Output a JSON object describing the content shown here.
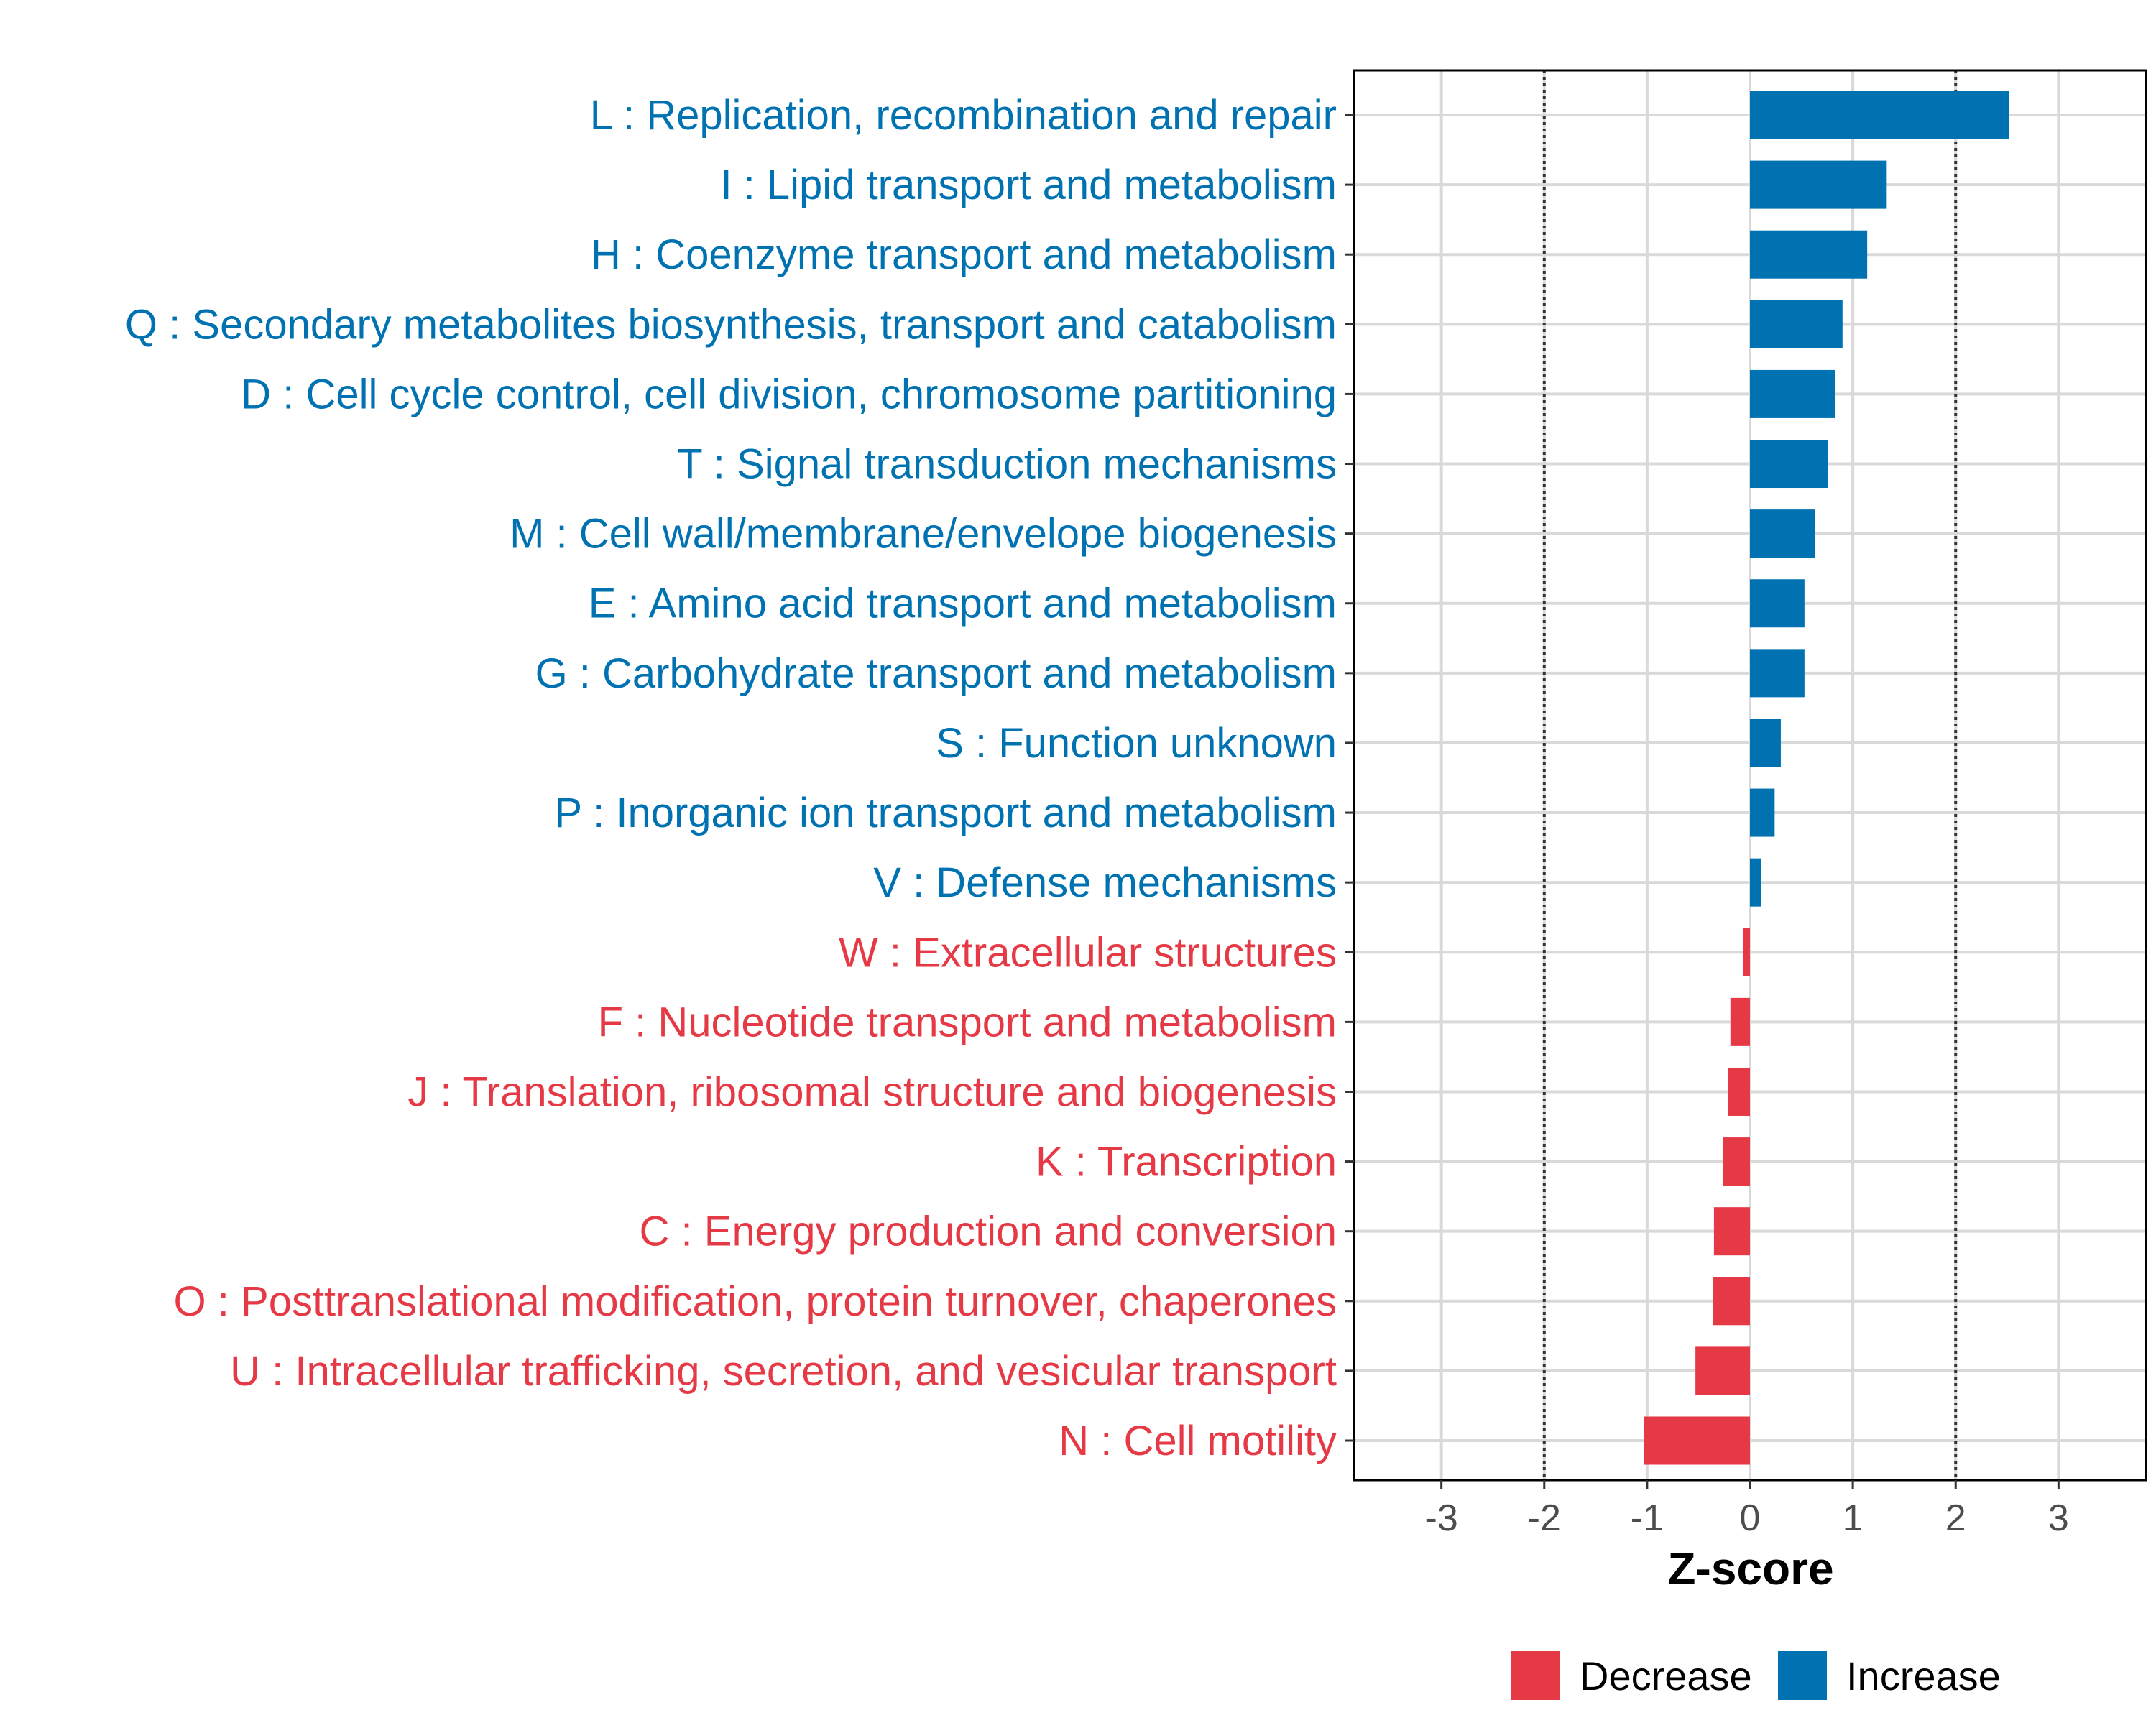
{
  "chart_data": {
    "type": "bar",
    "orientation": "horizontal",
    "xlabel": "Z-score",
    "ylabel": "",
    "xlim": [
      -3.85,
      3.85
    ],
    "xticks": [
      -3,
      -2,
      -1,
      0,
      1,
      2,
      3
    ],
    "xtick_labels": [
      "-3",
      "-2",
      "-1",
      "0",
      "1",
      "2",
      "3"
    ],
    "reference_lines": [
      -2,
      2
    ],
    "grid": true,
    "categories": [
      "L : Replication, recombination and repair",
      "I : Lipid transport and metabolism",
      "H : Coenzyme transport and metabolism",
      "Q : Secondary metabolites biosynthesis, transport and catabolism",
      "D : Cell cycle control, cell division, chromosome partitioning",
      "T : Signal transduction mechanisms",
      "M : Cell wall/membrane/envelope biogenesis",
      "E : Amino acid transport and metabolism",
      "G : Carbohydrate transport and metabolism",
      "S : Function unknown",
      "P : Inorganic ion transport and metabolism",
      "V : Defense mechanisms",
      "W : Extracellular structures",
      "F : Nucleotide transport and metabolism",
      "J : Translation, ribosomal structure and biogenesis",
      "K : Transcription",
      "C : Energy production and conversion",
      "O : Posttranslational modification, protein turnover, chaperones",
      "U : Intracellular trafficking, secretion, and vesicular transport",
      "N : Cell motility"
    ],
    "values": [
      2.52,
      1.33,
      1.14,
      0.9,
      0.83,
      0.76,
      0.63,
      0.53,
      0.53,
      0.3,
      0.24,
      0.11,
      -0.07,
      -0.19,
      -0.21,
      -0.26,
      -0.35,
      -0.36,
      -0.53,
      -1.03
    ],
    "groups": [
      "Increase",
      "Increase",
      "Increase",
      "Increase",
      "Increase",
      "Increase",
      "Increase",
      "Increase",
      "Increase",
      "Increase",
      "Increase",
      "Increase",
      "Decrease",
      "Decrease",
      "Decrease",
      "Decrease",
      "Decrease",
      "Decrease",
      "Decrease",
      "Decrease"
    ],
    "legend": {
      "position": "bottom",
      "entries": [
        {
          "label": "Decrease",
          "color": "#e63946"
        },
        {
          "label": "Increase",
          "color": "#0072b2"
        }
      ]
    },
    "colors": {
      "Decrease": "#e63946",
      "Increase": "#0072b2"
    }
  }
}
